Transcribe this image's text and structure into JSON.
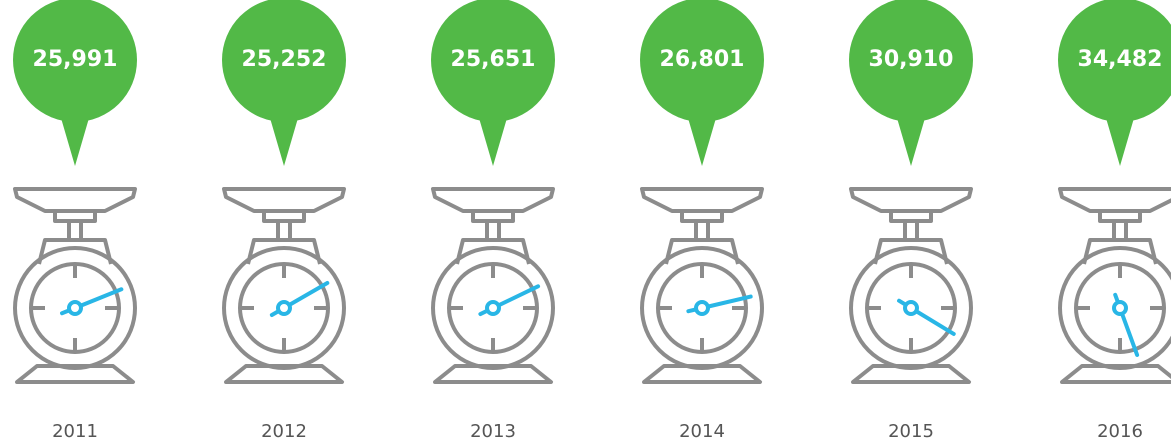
{
  "chart_data": {
    "type": "gauge",
    "categories": [
      "2011",
      "2012",
      "2013",
      "2014",
      "2015",
      "2016"
    ],
    "values": [
      25991,
      25252,
      25651,
      26801,
      30910,
      34482
    ],
    "value_labels": [
      "25,991",
      "25,252",
      "25,651",
      "26,801",
      "30,910",
      "34,482"
    ],
    "color": "#52b947"
  }
}
